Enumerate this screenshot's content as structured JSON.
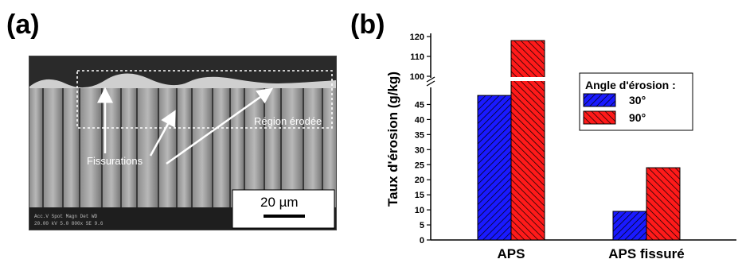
{
  "panels": {
    "a": "(a)",
    "b": "(b)"
  },
  "micrograph": {
    "region_label": "Région érodée",
    "crack_label": "Fissurations",
    "scalebar_label": "20 µm"
  },
  "colors": {
    "series_30": "#1a1aff",
    "series_90": "#ff1a1a"
  },
  "chart_data": {
    "type": "bar",
    "ylabel": "Taux d'érosion (g/kg)",
    "categories": [
      "APS",
      "APS fissuré"
    ],
    "broken_axis": {
      "lower": [
        0,
        50
      ],
      "upper": [
        100,
        120
      ]
    },
    "yticks_lower": [
      "0",
      "5",
      "10",
      "15",
      "20",
      "25",
      "30",
      "35",
      "40",
      "45"
    ],
    "yticks_upper": [
      "100",
      "110",
      "120"
    ],
    "legend_title": "Angle d'érosion :",
    "legend_position": "top-right",
    "series": [
      {
        "name": "30°",
        "values": [
          48,
          9.5
        ]
      },
      {
        "name": "90°",
        "values": [
          118,
          24
        ]
      }
    ]
  }
}
